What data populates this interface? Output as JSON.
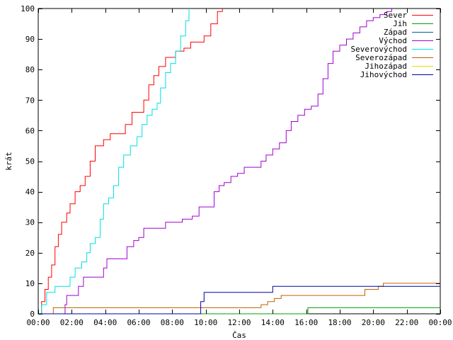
{
  "chart_data": {
    "type": "line",
    "title": "",
    "xlabel": "Čas",
    "ylabel": "krát",
    "xlim": [
      0,
      24
    ],
    "ylim": [
      0,
      100
    ],
    "x_unit": "hours",
    "x_ticks": [
      {
        "value": 0,
        "label": "00:00"
      },
      {
        "value": 2,
        "label": "02:00"
      },
      {
        "value": 4,
        "label": "04:00"
      },
      {
        "value": 6,
        "label": "06:00"
      },
      {
        "value": 8,
        "label": "08:00"
      },
      {
        "value": 10,
        "label": "10:00"
      },
      {
        "value": 12,
        "label": "12:00"
      },
      {
        "value": 14,
        "label": "14:00"
      },
      {
        "value": 16,
        "label": "16:00"
      },
      {
        "value": 18,
        "label": "18:00"
      },
      {
        "value": 20,
        "label": "20:00"
      },
      {
        "value": 22,
        "label": "22:00"
      },
      {
        "value": 24,
        "label": "00:00"
      }
    ],
    "y_ticks": [
      0,
      10,
      20,
      30,
      40,
      50,
      60,
      70,
      80,
      90,
      100
    ],
    "grid": false,
    "legend_position": "top-right",
    "series": [
      {
        "name": "Sever",
        "color": "#ff0000",
        "points": [
          [
            0.05,
            0
          ],
          [
            0.2,
            4
          ],
          [
            0.4,
            8
          ],
          [
            0.6,
            12
          ],
          [
            0.8,
            16
          ],
          [
            1.0,
            22
          ],
          [
            1.2,
            26
          ],
          [
            1.4,
            30
          ],
          [
            1.7,
            33
          ],
          [
            1.9,
            36
          ],
          [
            2.2,
            40
          ],
          [
            2.5,
            42
          ],
          [
            2.8,
            45
          ],
          [
            3.1,
            50
          ],
          [
            3.4,
            55
          ],
          [
            3.9,
            57
          ],
          [
            4.3,
            59
          ],
          [
            4.9,
            59
          ],
          [
            5.2,
            62
          ],
          [
            5.6,
            66
          ],
          [
            6.0,
            66
          ],
          [
            6.3,
            70
          ],
          [
            6.6,
            75
          ],
          [
            6.9,
            78
          ],
          [
            7.2,
            81
          ],
          [
            7.6,
            84
          ],
          [
            8.2,
            86
          ],
          [
            8.7,
            87
          ],
          [
            9.1,
            89
          ],
          [
            9.6,
            89
          ],
          [
            9.9,
            91
          ],
          [
            10.3,
            95
          ],
          [
            10.7,
            99
          ],
          [
            11.0,
            100
          ]
        ]
      },
      {
        "name": "Jih",
        "color": "#00a000",
        "points": [
          [
            0,
            0
          ],
          [
            16.0,
            0
          ],
          [
            16.1,
            2
          ],
          [
            24,
            2
          ]
        ]
      },
      {
        "name": "Západ",
        "color": "#0060a0",
        "points": []
      },
      {
        "name": "Východ",
        "color": "#a000d0",
        "points": [
          [
            1.3,
            0
          ],
          [
            1.6,
            3
          ],
          [
            1.7,
            6
          ],
          [
            2.2,
            6
          ],
          [
            2.4,
            9
          ],
          [
            2.7,
            12
          ],
          [
            3.4,
            12
          ],
          [
            3.9,
            15
          ],
          [
            4.1,
            18
          ],
          [
            4.9,
            18
          ],
          [
            5.3,
            22
          ],
          [
            5.7,
            24
          ],
          [
            6.0,
            25
          ],
          [
            6.3,
            28
          ],
          [
            7.1,
            28
          ],
          [
            7.6,
            30
          ],
          [
            8.1,
            30
          ],
          [
            8.6,
            31
          ],
          [
            9.2,
            32
          ],
          [
            9.6,
            35
          ],
          [
            10.2,
            35
          ],
          [
            10.5,
            40
          ],
          [
            10.8,
            42
          ],
          [
            11.1,
            43
          ],
          [
            11.5,
            45
          ],
          [
            11.9,
            46
          ],
          [
            12.3,
            48
          ],
          [
            13.0,
            48
          ],
          [
            13.3,
            50
          ],
          [
            13.6,
            52
          ],
          [
            14.0,
            54
          ],
          [
            14.4,
            56
          ],
          [
            14.8,
            60
          ],
          [
            15.1,
            63
          ],
          [
            15.5,
            65
          ],
          [
            15.9,
            67
          ],
          [
            16.3,
            68
          ],
          [
            16.7,
            72
          ],
          [
            17.0,
            77
          ],
          [
            17.3,
            82
          ],
          [
            17.6,
            86
          ],
          [
            18.0,
            88
          ],
          [
            18.4,
            90
          ],
          [
            18.8,
            92
          ],
          [
            19.2,
            94
          ],
          [
            19.6,
            96
          ],
          [
            20.0,
            97
          ],
          [
            20.4,
            98
          ],
          [
            20.8,
            99
          ],
          [
            21.1,
            100
          ]
        ]
      },
      {
        "name": "Severovýchod",
        "color": "#00e0e0",
        "points": [
          [
            0.05,
            0
          ],
          [
            0.2,
            3
          ],
          [
            0.5,
            7
          ],
          [
            0.8,
            7
          ],
          [
            1.0,
            9
          ],
          [
            1.7,
            9
          ],
          [
            1.9,
            12
          ],
          [
            2.2,
            15
          ],
          [
            2.6,
            17
          ],
          [
            2.9,
            20
          ],
          [
            3.1,
            23
          ],
          [
            3.4,
            25
          ],
          [
            3.7,
            31
          ],
          [
            3.9,
            36
          ],
          [
            4.2,
            38
          ],
          [
            4.5,
            42
          ],
          [
            4.8,
            48
          ],
          [
            5.1,
            52
          ],
          [
            5.5,
            55
          ],
          [
            5.9,
            58
          ],
          [
            6.2,
            62
          ],
          [
            6.5,
            65
          ],
          [
            6.8,
            67
          ],
          [
            7.1,
            69
          ],
          [
            7.3,
            74
          ],
          [
            7.6,
            79
          ],
          [
            7.9,
            82
          ],
          [
            8.2,
            86
          ],
          [
            8.5,
            91
          ],
          [
            8.8,
            96
          ],
          [
            9.0,
            100
          ]
        ]
      },
      {
        "name": "Severozápad",
        "color": "#c06000",
        "points": [
          [
            0.8,
            0
          ],
          [
            0.9,
            2
          ],
          [
            13.0,
            2
          ],
          [
            13.3,
            3
          ],
          [
            13.7,
            4
          ],
          [
            14.1,
            5
          ],
          [
            14.5,
            6
          ],
          [
            19.2,
            6
          ],
          [
            19.5,
            8
          ],
          [
            20.3,
            9
          ],
          [
            20.6,
            10
          ],
          [
            24,
            10
          ]
        ]
      },
      {
        "name": "Jihozápad",
        "color": "#e0e000",
        "points": []
      },
      {
        "name": "Jihovýchod",
        "color": "#0000a0",
        "points": [
          [
            0,
            0
          ],
          [
            9.5,
            0
          ],
          [
            9.7,
            4
          ],
          [
            9.9,
            7
          ],
          [
            13.8,
            7
          ],
          [
            14.0,
            9
          ],
          [
            24,
            9
          ]
        ]
      }
    ]
  }
}
